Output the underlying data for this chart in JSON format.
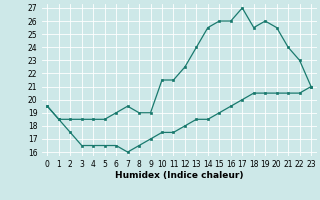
{
  "xlabel": "Humidex (Indice chaleur)",
  "bg_color": "#cde8e8",
  "grid_color": "#ffffff",
  "line_color": "#1a7a6e",
  "xlim": [
    -0.5,
    23.5
  ],
  "ylim": [
    15.7,
    27.3
  ],
  "xticks": [
    0,
    1,
    2,
    3,
    4,
    5,
    6,
    7,
    8,
    9,
    10,
    11,
    12,
    13,
    14,
    15,
    16,
    17,
    18,
    19,
    20,
    21,
    22,
    23
  ],
  "yticks": [
    16,
    17,
    18,
    19,
    20,
    21,
    22,
    23,
    24,
    25,
    26,
    27
  ],
  "upper_x": [
    0,
    1,
    2,
    3,
    4,
    5,
    6,
    7,
    8,
    9,
    10,
    11,
    12,
    13,
    14,
    15,
    16,
    17,
    18,
    19,
    20,
    21,
    22,
    23
  ],
  "upper_y": [
    19.5,
    18.5,
    18.5,
    18.5,
    18.5,
    18.5,
    19.0,
    19.5,
    19.0,
    19.0,
    21.5,
    21.5,
    22.5,
    24.0,
    25.5,
    26.0,
    26.0,
    27.0,
    25.5,
    26.0,
    25.5,
    24.0,
    23.0,
    21.0
  ],
  "lower_x": [
    0,
    1,
    2,
    3,
    4,
    5,
    6,
    7,
    8,
    9,
    10,
    11,
    12,
    13,
    14,
    15,
    16,
    17,
    18,
    19,
    20,
    21,
    22,
    23
  ],
  "lower_y": [
    19.5,
    18.5,
    17.5,
    16.5,
    16.5,
    16.5,
    16.5,
    16.0,
    16.5,
    17.0,
    17.5,
    17.5,
    18.0,
    18.5,
    18.5,
    19.0,
    19.5,
    20.0,
    20.5,
    20.5,
    20.5,
    20.5,
    20.5,
    21.0
  ],
  "tick_fontsize": 5.5,
  "xlabel_fontsize": 6.5
}
